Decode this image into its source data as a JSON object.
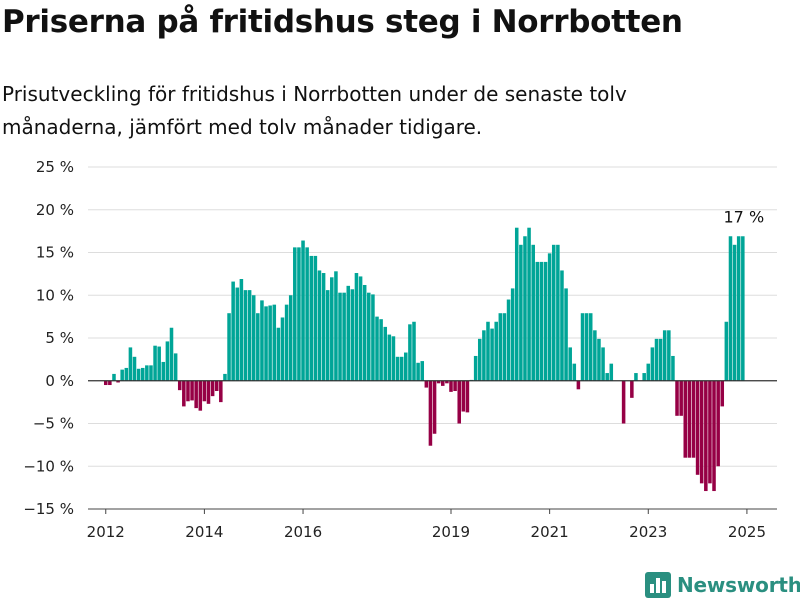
{
  "title": "Priserna på fritidshus steg i Norrbotten",
  "subtitle": "Prisutveckling för fritidshus i Norrbotten under de senaste tolv månaderna, jämfört med tolv månader tidigare.",
  "brand": {
    "name": "Newsworthy",
    "icon": "bar-chart-logo-icon"
  },
  "colors": {
    "positive": "#00a597",
    "negative": "#960045",
    "grid": "#dddddd",
    "zero": "#333333"
  },
  "chart_data": {
    "type": "bar",
    "title": "Priserna på fritidshus steg i Norrbotten",
    "xlabel": "",
    "ylabel": "",
    "ylim": [
      -15,
      25
    ],
    "y_ticks": [
      {
        "value": 25,
        "label": "25 %"
      },
      {
        "value": 20,
        "label": "20 %"
      },
      {
        "value": 15,
        "label": "15 %"
      },
      {
        "value": 10,
        "label": "10 %"
      },
      {
        "value": 5,
        "label": "5 %"
      },
      {
        "value": 0,
        "label": "0 %"
      },
      {
        "value": -5,
        "label": "−5 %"
      },
      {
        "value": -10,
        "label": "−10 %"
      },
      {
        "value": -15,
        "label": "−15 %"
      }
    ],
    "x_ticks": [
      {
        "value": 2012.0,
        "label": "2012"
      },
      {
        "value": 2014.0,
        "label": "2014"
      },
      {
        "value": 2016.0,
        "label": "2016"
      },
      {
        "value": 2019.0,
        "label": "2019"
      },
      {
        "value": 2021.0,
        "label": "2021"
      },
      {
        "value": 2023.0,
        "label": "2023"
      },
      {
        "value": 2025.0,
        "label": "2025"
      }
    ],
    "annotation": {
      "label": "17 %",
      "x": 2024.958,
      "y": 17
    },
    "bars": [
      [
        2012.0,
        -0.5
      ],
      [
        2012.083,
        -0.5
      ],
      [
        2012.167,
        0.8
      ],
      [
        2012.25,
        -0.2
      ],
      [
        2012.333,
        1.3
      ],
      [
        2012.417,
        1.5
      ],
      [
        2012.5,
        3.9
      ],
      [
        2012.583,
        2.8
      ],
      [
        2012.667,
        1.4
      ],
      [
        2012.75,
        1.5
      ],
      [
        2012.833,
        1.8
      ],
      [
        2012.917,
        1.8
      ],
      [
        2013.0,
        4.1
      ],
      [
        2013.083,
        4.0
      ],
      [
        2013.167,
        2.2
      ],
      [
        2013.25,
        4.6
      ],
      [
        2013.333,
        6.2
      ],
      [
        2013.417,
        3.2
      ],
      [
        2013.5,
        -1.1
      ],
      [
        2013.583,
        -3.0
      ],
      [
        2013.667,
        -2.4
      ],
      [
        2013.75,
        -2.3
      ],
      [
        2013.833,
        -3.2
      ],
      [
        2013.917,
        -3.5
      ],
      [
        2014.0,
        -2.4
      ],
      [
        2014.083,
        -2.7
      ],
      [
        2014.167,
        -1.8
      ],
      [
        2014.25,
        -1.2
      ],
      [
        2014.333,
        -2.5
      ],
      [
        2014.417,
        0.8
      ],
      [
        2014.5,
        7.9
      ],
      [
        2014.583,
        11.6
      ],
      [
        2014.667,
        10.9
      ],
      [
        2014.75,
        11.9
      ],
      [
        2014.833,
        10.6
      ],
      [
        2014.917,
        10.6
      ],
      [
        2015.0,
        10.0
      ],
      [
        2015.083,
        7.9
      ],
      [
        2015.167,
        9.4
      ],
      [
        2015.25,
        8.7
      ],
      [
        2015.333,
        8.8
      ],
      [
        2015.417,
        8.9
      ],
      [
        2015.5,
        6.2
      ],
      [
        2015.583,
        7.4
      ],
      [
        2015.667,
        8.9
      ],
      [
        2015.75,
        10.0
      ],
      [
        2015.833,
        15.6
      ],
      [
        2015.917,
        15.6
      ],
      [
        2016.0,
        16.4
      ],
      [
        2016.083,
        15.6
      ],
      [
        2016.167,
        14.6
      ],
      [
        2016.25,
        14.6
      ],
      [
        2016.333,
        12.9
      ],
      [
        2016.417,
        12.6
      ],
      [
        2016.5,
        10.6
      ],
      [
        2016.583,
        12.1
      ],
      [
        2016.667,
        12.8
      ],
      [
        2016.75,
        10.3
      ],
      [
        2016.833,
        10.3
      ],
      [
        2016.917,
        11.1
      ],
      [
        2017.0,
        10.7
      ],
      [
        2017.083,
        12.6
      ],
      [
        2017.167,
        12.2
      ],
      [
        2017.25,
        11.2
      ],
      [
        2017.333,
        10.3
      ],
      [
        2017.417,
        10.1
      ],
      [
        2017.5,
        7.5
      ],
      [
        2017.583,
        7.2
      ],
      [
        2017.667,
        6.3
      ],
      [
        2017.75,
        5.4
      ],
      [
        2017.833,
        5.2
      ],
      [
        2017.917,
        2.8
      ],
      [
        2018.0,
        2.8
      ],
      [
        2018.083,
        3.3
      ],
      [
        2018.167,
        6.6
      ],
      [
        2018.25,
        6.9
      ],
      [
        2018.333,
        2.1
      ],
      [
        2018.417,
        2.3
      ],
      [
        2018.5,
        -0.8
      ],
      [
        2018.583,
        -7.6
      ],
      [
        2018.667,
        -6.2
      ],
      [
        2018.75,
        -0.3
      ],
      [
        2018.833,
        -0.6
      ],
      [
        2018.917,
        -0.3
      ],
      [
        2019.0,
        -1.3
      ],
      [
        2019.083,
        -1.2
      ],
      [
        2019.167,
        -5.0
      ],
      [
        2019.25,
        -3.6
      ],
      [
        2019.333,
        -3.7
      ],
      [
        2019.417,
        0.1
      ],
      [
        2019.5,
        2.9
      ],
      [
        2019.583,
        4.9
      ],
      [
        2019.667,
        5.9
      ],
      [
        2019.75,
        6.9
      ],
      [
        2019.833,
        6.1
      ],
      [
        2019.917,
        6.9
      ],
      [
        2020.0,
        7.9
      ],
      [
        2020.083,
        7.9
      ],
      [
        2020.167,
        9.5
      ],
      [
        2020.25,
        10.8
      ],
      [
        2020.333,
        17.9
      ],
      [
        2020.417,
        15.9
      ],
      [
        2020.5,
        16.9
      ],
      [
        2020.583,
        17.9
      ],
      [
        2020.667,
        15.9
      ],
      [
        2020.75,
        13.9
      ],
      [
        2020.833,
        13.9
      ],
      [
        2020.917,
        13.9
      ],
      [
        2021.0,
        14.9
      ],
      [
        2021.083,
        15.9
      ],
      [
        2021.167,
        15.9
      ],
      [
        2021.25,
        12.9
      ],
      [
        2021.333,
        10.8
      ],
      [
        2021.417,
        3.9
      ],
      [
        2021.5,
        2.0
      ],
      [
        2021.583,
        -1.0
      ],
      [
        2021.667,
        7.9
      ],
      [
        2021.75,
        7.9
      ],
      [
        2021.833,
        7.9
      ],
      [
        2021.917,
        5.9
      ],
      [
        2022.0,
        4.9
      ],
      [
        2022.083,
        3.9
      ],
      [
        2022.167,
        0.9
      ],
      [
        2022.25,
        2.0
      ],
      [
        2022.333,
        0.0
      ],
      [
        2022.417,
        0.0
      ],
      [
        2022.5,
        -5.0
      ],
      [
        2022.583,
        0.0
      ],
      [
        2022.667,
        -2.0
      ],
      [
        2022.75,
        0.9
      ],
      [
        2022.833,
        0.0
      ],
      [
        2022.917,
        0.9
      ],
      [
        2023.0,
        2.0
      ],
      [
        2023.083,
        3.9
      ],
      [
        2023.167,
        4.9
      ],
      [
        2023.25,
        4.9
      ],
      [
        2023.333,
        5.9
      ],
      [
        2023.417,
        5.9
      ],
      [
        2023.5,
        2.9
      ],
      [
        2023.583,
        -4.1
      ],
      [
        2023.667,
        -4.1
      ],
      [
        2023.75,
        -9.0
      ],
      [
        2023.833,
        -9.0
      ],
      [
        2023.917,
        -9.0
      ],
      [
        2024.0,
        -11.0
      ],
      [
        2024.083,
        -12.0
      ],
      [
        2024.167,
        -12.9
      ],
      [
        2024.25,
        -12.0
      ],
      [
        2024.333,
        -12.9
      ],
      [
        2024.417,
        -10.0
      ],
      [
        2024.5,
        -3.0
      ],
      [
        2024.583,
        6.9
      ],
      [
        2024.667,
        16.9
      ],
      [
        2024.75,
        15.9
      ],
      [
        2024.833,
        16.9
      ],
      [
        2024.917,
        16.9
      ]
    ]
  }
}
